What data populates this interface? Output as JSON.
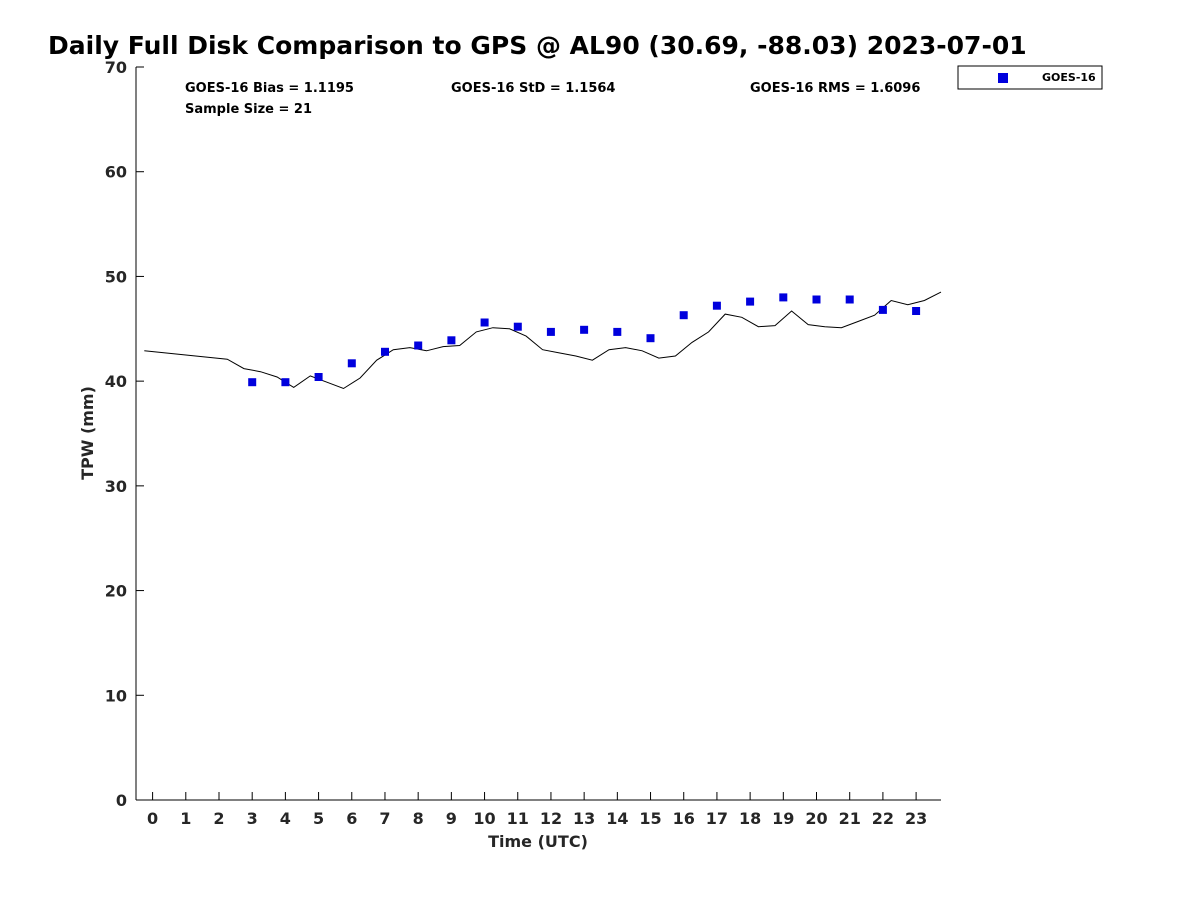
{
  "chart_data": {
    "type": "scatter",
    "title": "Daily Full Disk Comparison to GPS @ AL90 (30.69, -88.03) 2023-07-01",
    "xlabel": "Time (UTC)",
    "ylabel": "TPW (mm)",
    "xlim": [
      -0.5,
      23.75
    ],
    "ylim": [
      0,
      70
    ],
    "x_ticks": [
      "0",
      "1",
      "2",
      "3",
      "4",
      "5",
      "6",
      "7",
      "8",
      "9",
      "10",
      "11",
      "12",
      "13",
      "14",
      "15",
      "16",
      "17",
      "18",
      "19",
      "20",
      "21",
      "22",
      "23"
    ],
    "y_ticks": [
      "0",
      "10",
      "20",
      "30",
      "40",
      "50",
      "60",
      "70"
    ],
    "grid": false,
    "legend_position": "top-right, outside",
    "stats": {
      "bias": "GOES-16 Bias = 1.1195",
      "std": "GOES-16 StD = 1.1564",
      "rms": "GOES-16 RMS = 1.6096",
      "sample": "Sample Size = 21"
    },
    "series": [
      {
        "name": "GOES-16",
        "kind": "markers",
        "color": "#0000dd",
        "x": [
          3,
          4,
          5,
          6,
          7,
          8,
          9,
          10,
          11,
          12,
          13,
          14,
          15,
          16,
          17,
          18,
          19,
          20,
          21,
          22,
          23
        ],
        "y": [
          39.9,
          39.9,
          40.4,
          41.7,
          42.8,
          43.4,
          43.9,
          45.6,
          45.2,
          44.7,
          44.9,
          44.7,
          44.1,
          46.3,
          47.2,
          47.6,
          48.0,
          47.8,
          47.8,
          46.8,
          46.7
        ]
      },
      {
        "name": "",
        "kind": "line",
        "color": "#000000",
        "x": [
          -0.25,
          2.25,
          2.75,
          3.25,
          3.75,
          4.25,
          4.75,
          5.25,
          5.75,
          6.25,
          6.75,
          7.25,
          7.75,
          8.25,
          8.75,
          9.25,
          9.75,
          10.25,
          10.75,
          11.25,
          11.75,
          12.25,
          12.75,
          13.25,
          13.75,
          14.25,
          14.75,
          15.25,
          15.75,
          16.25,
          16.75,
          17.25,
          17.75,
          18.25,
          18.75,
          19.25,
          19.75,
          20.25,
          20.75,
          21.25,
          21.75,
          22.25,
          22.75,
          23.25,
          23.75
        ],
        "y": [
          42.9,
          42.1,
          41.2,
          40.9,
          40.4,
          39.4,
          40.5,
          39.9,
          39.3,
          40.3,
          42.0,
          43.0,
          43.2,
          42.9,
          43.3,
          43.4,
          44.7,
          45.1,
          45.0,
          44.3,
          43.0,
          42.7,
          42.4,
          42.0,
          43.0,
          43.2,
          42.9,
          42.2,
          42.4,
          43.7,
          44.7,
          46.4,
          46.1,
          45.2,
          45.3,
          46.7,
          45.4,
          45.2,
          45.1,
          45.7,
          46.3,
          47.7,
          47.3,
          47.7,
          48.5
        ]
      }
    ]
  }
}
